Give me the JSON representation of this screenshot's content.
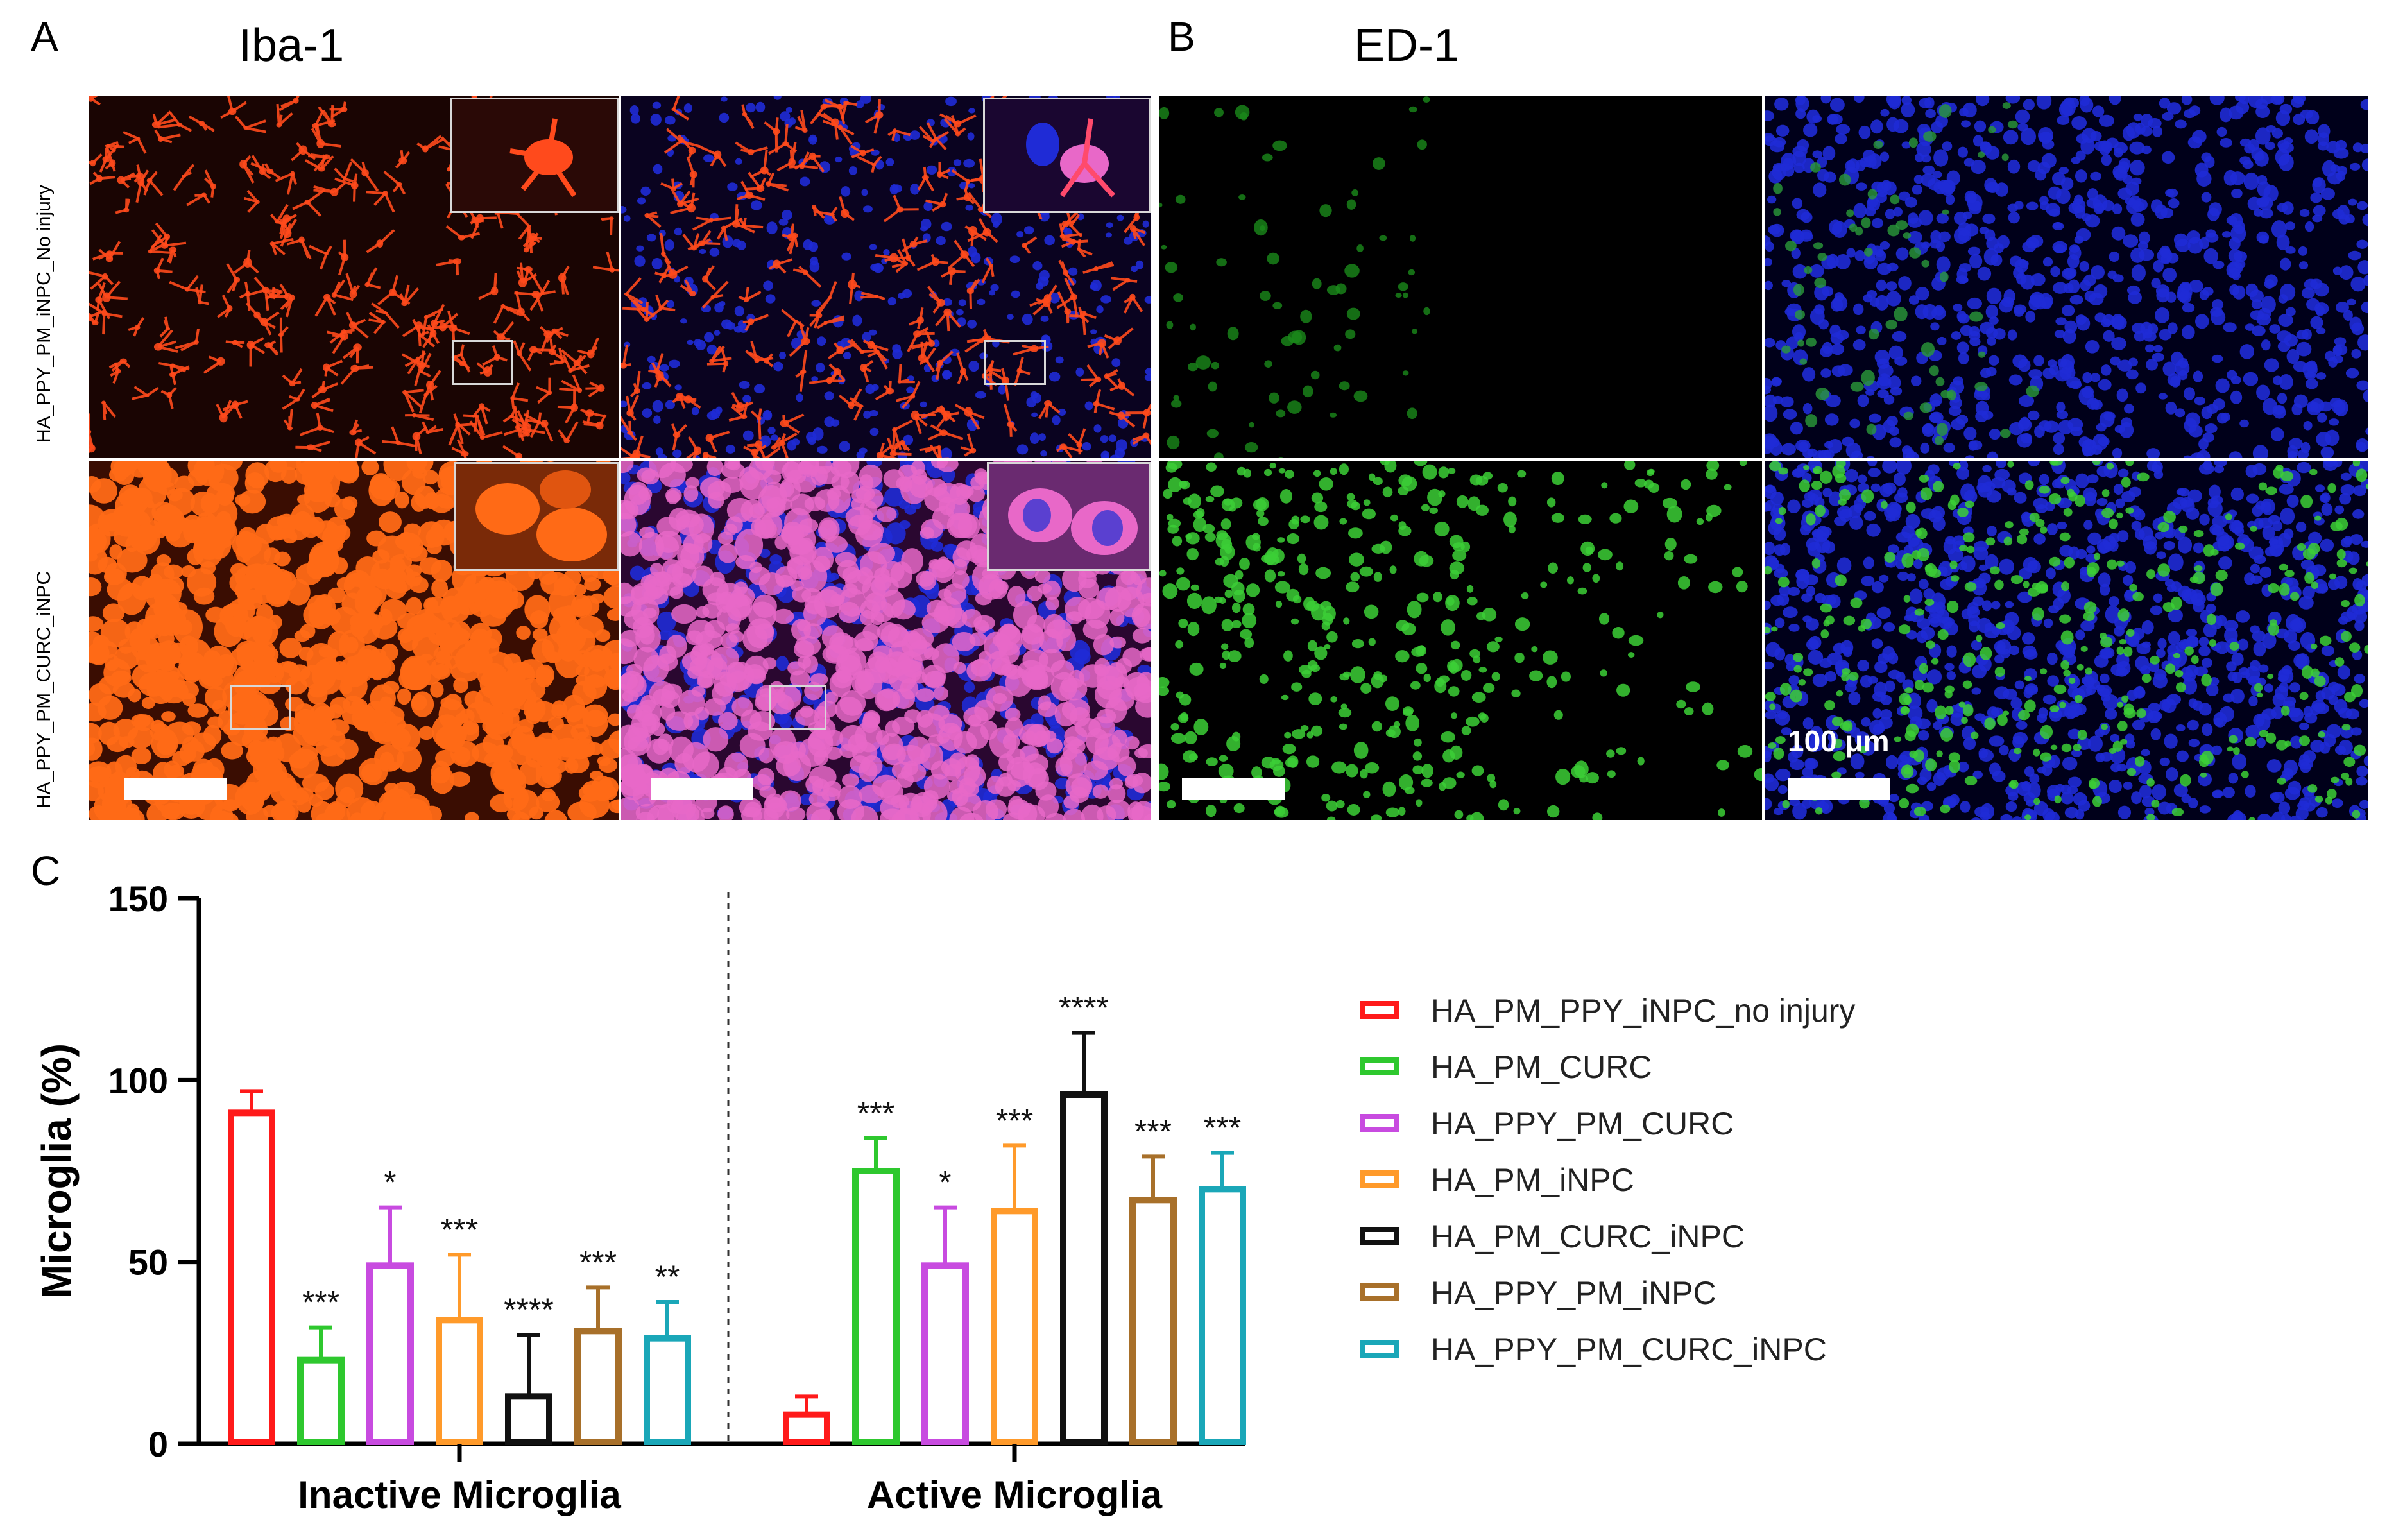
{
  "panels": {
    "a": {
      "label": "A",
      "stain": "Iba-1"
    },
    "b": {
      "label": "B",
      "stain": "ED-1"
    },
    "c": {
      "label": "C"
    }
  },
  "row_labels": [
    "HA_PPY_PM_iNPC_No injury",
    "HA_PPY_PM_CURC_iNPC"
  ],
  "scale_text": "100 μm",
  "colors": {
    "iba_red": "#ff4a1c",
    "iba_orange": "#ff6a16",
    "ed_green": "#3ccf36",
    "dapi_blue": "#1f2bd6",
    "merge_pink": "#e868c8"
  },
  "chart_data": {
    "type": "bar",
    "title": "",
    "xlabel": "",
    "ylabel": "Microglia (%)",
    "ylim": [
      0,
      150
    ],
    "yticks": [
      0,
      50,
      100,
      150
    ],
    "categories": [
      "Inactive Microglia",
      "Active Microglia"
    ],
    "legend_position": "right",
    "series": [
      {
        "name": "HA_PM_PPY_iNPC_no injury",
        "color": "#ff1a1a",
        "values": [
          91,
          8
        ],
        "errors": [
          6,
          5
        ],
        "sig": [
          "",
          ""
        ]
      },
      {
        "name": "HA_PM_CURC",
        "color": "#2ec82e",
        "values": [
          23,
          75
        ],
        "errors": [
          9,
          9
        ],
        "sig": [
          "***",
          "***"
        ]
      },
      {
        "name": "HA_PPY_PM_CURC",
        "color": "#c84be0",
        "values": [
          49,
          49
        ],
        "errors": [
          16,
          16
        ],
        "sig": [
          "*",
          "*"
        ]
      },
      {
        "name": "HA_PM_iNPC",
        "color": "#ff9a2a",
        "values": [
          34,
          64
        ],
        "errors": [
          18,
          18
        ],
        "sig": [
          "***",
          "***"
        ]
      },
      {
        "name": "HA_PM_CURC_iNPC",
        "color": "#111111",
        "values": [
          13,
          96
        ],
        "errors": [
          17,
          17
        ],
        "sig": [
          "****",
          "****"
        ]
      },
      {
        "name": "HA_PPY_PM_iNPC",
        "color": "#a8702a",
        "values": [
          31,
          67
        ],
        "errors": [
          12,
          12
        ],
        "sig": [
          "***",
          "***"
        ]
      },
      {
        "name": "HA_PPY_PM_CURC_iNPC",
        "color": "#1aa7b8",
        "values": [
          29,
          70
        ],
        "errors": [
          10,
          10
        ],
        "sig": [
          "**",
          "***"
        ]
      }
    ]
  }
}
